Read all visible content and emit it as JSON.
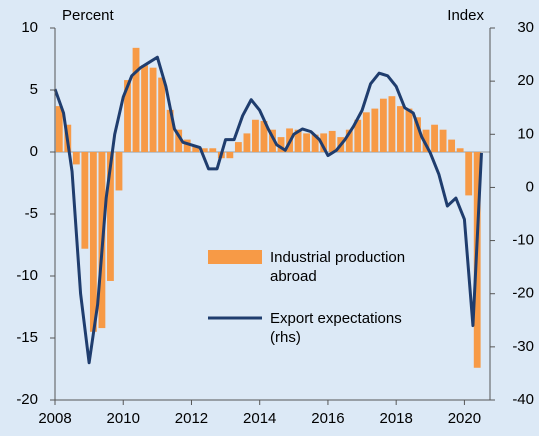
{
  "chart_data": {
    "type": "bar-line",
    "y_label": "Percent",
    "y2_label": "Index",
    "x": [
      2008,
      2008.25,
      2008.5,
      2008.75,
      2009,
      2009.25,
      2009.5,
      2009.75,
      2010,
      2010.25,
      2010.5,
      2010.75,
      2011,
      2011.25,
      2011.5,
      2011.75,
      2012,
      2012.25,
      2012.5,
      2012.75,
      2013,
      2013.25,
      2013.5,
      2013.75,
      2014,
      2014.25,
      2014.5,
      2014.75,
      2015,
      2015.25,
      2015.5,
      2015.75,
      2016,
      2016.25,
      2016.5,
      2016.75,
      2017,
      2017.25,
      2017.5,
      2017.75,
      2018,
      2018.25,
      2018.5,
      2018.75,
      2019,
      2019.25,
      2019.5,
      2019.75,
      2020,
      2020.25,
      2020.5
    ],
    "series": [
      {
        "name": "Industrial production abroad",
        "kind": "bar",
        "color": "#f79a46",
        "values": [
          3.7,
          2.2,
          -1,
          -7.8,
          -14.5,
          -14.2,
          -10.4,
          -3.1,
          5.8,
          8.4,
          7.0,
          6.8,
          6.0,
          3.4,
          1.8,
          1.0,
          0.5,
          0.3,
          0.3,
          -0.5,
          -0.5,
          0.8,
          1.5,
          2.6,
          2.5,
          1.8,
          1.2,
          1.9,
          1.8,
          1.5,
          1.4,
          1.5,
          1.7,
          1.2,
          1.8,
          2.6,
          3.2,
          3.5,
          4.3,
          4.5,
          3.7,
          3.5,
          2.8,
          1.8,
          2.2,
          1.8,
          1.0,
          0.3,
          -3.5,
          -17.4,
          null
        ]
      },
      {
        "name": "Export expectations (rhs)",
        "kind": "line",
        "axis": "y2",
        "color": "#1f3d6e",
        "values": [
          18.5,
          14,
          3,
          -20,
          -33,
          -22,
          -2,
          10,
          17,
          21,
          22.5,
          23.5,
          24.5,
          19,
          11,
          8.5,
          8,
          7.5,
          3.5,
          3.5,
          9,
          9,
          13.5,
          16.5,
          14.5,
          11,
          8,
          7,
          10,
          11,
          10.5,
          9,
          6,
          7,
          9,
          11.5,
          14.5,
          19.5,
          21.5,
          21,
          19,
          15,
          14,
          9.5,
          6.5,
          2.5,
          -3.5,
          -2,
          -6,
          -26,
          6.5
        ]
      }
    ],
    "xlim": [
      2008,
      2020.75
    ],
    "xticks": [
      2008,
      2010,
      2012,
      2014,
      2016,
      2018,
      2020
    ],
    "ylim": [
      -20,
      10
    ],
    "yticks": [
      -20,
      -15,
      -10,
      -5,
      0,
      5,
      10
    ],
    "y2lim": [
      -40,
      30
    ],
    "y2ticks": [
      -40,
      -30,
      -20,
      -10,
      0,
      10,
      20,
      30
    ]
  }
}
